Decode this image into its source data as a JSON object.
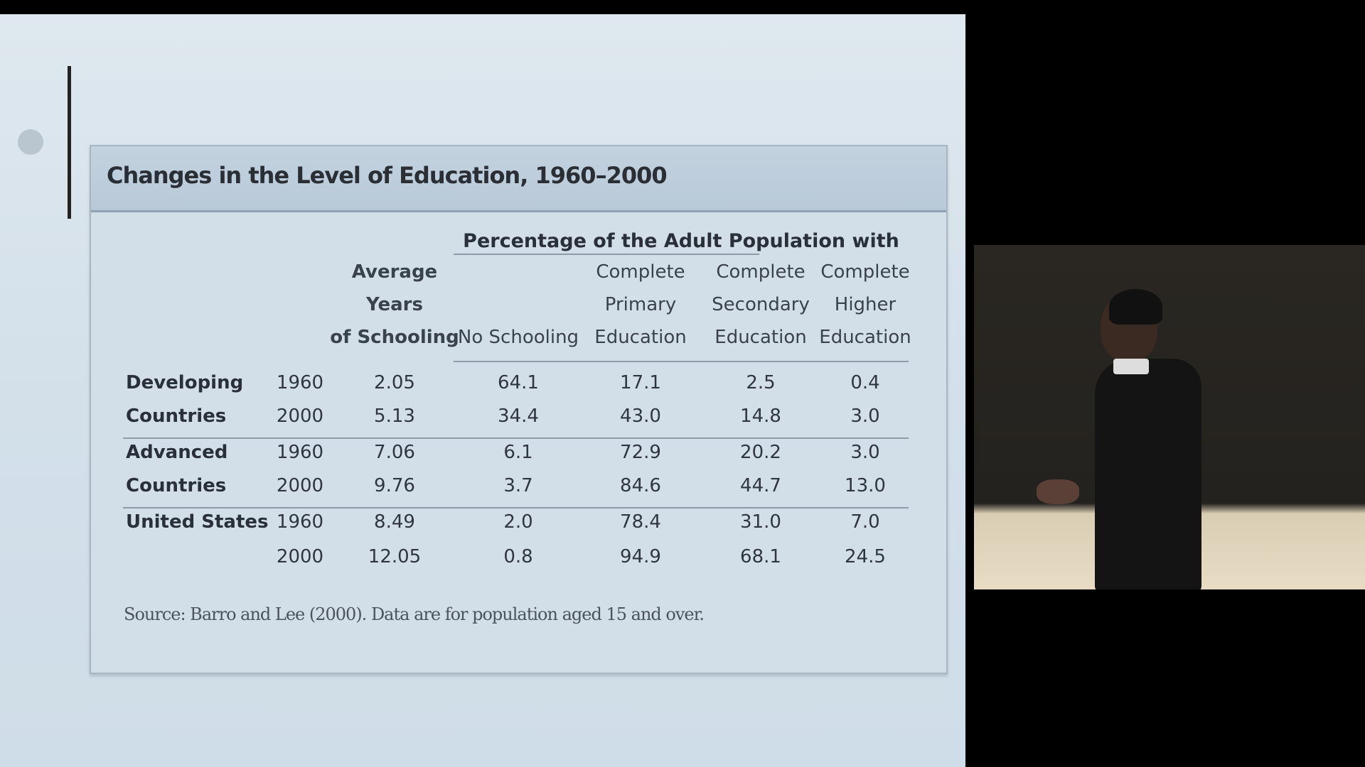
{
  "slide": {
    "table_title": "Changes in the Level of Education, 1960–2000",
    "group_header": "Percentage of the Adult Population with",
    "columns": [
      "Average Years of Schooling",
      "No Schooling",
      "Complete Primary Education",
      "Complete Secondary Education",
      "Complete Higher Education"
    ],
    "column_lines": [
      [
        "Average",
        "Years",
        "of Schooling"
      ],
      [
        "No Schooling"
      ],
      [
        "Complete",
        "Primary",
        "Education"
      ],
      [
        "Complete",
        "Secondary",
        "Education"
      ],
      [
        "Complete",
        "Higher",
        "Education"
      ]
    ],
    "rows": [
      {
        "region": "Developing",
        "year": "1960",
        "values": [
          "2.05",
          "64.1",
          "17.1",
          "2.5",
          "0.4"
        ]
      },
      {
        "region": "Countries",
        "year": "2000",
        "values": [
          "5.13",
          "34.4",
          "43.0",
          "14.8",
          "3.0"
        ]
      },
      {
        "region": "Advanced",
        "year": "1960",
        "values": [
          "7.06",
          "6.1",
          "72.9",
          "20.2",
          "3.0"
        ]
      },
      {
        "region": "Countries",
        "year": "2000",
        "values": [
          "9.76",
          "3.7",
          "84.6",
          "44.7",
          "13.0"
        ]
      },
      {
        "region": "United States",
        "year": "1960",
        "values": [
          "8.49",
          "2.0",
          "78.4",
          "31.0",
          "7.0"
        ]
      },
      {
        "region": "",
        "year": "2000",
        "values": [
          "12.05",
          "0.8",
          "94.9",
          "68.1",
          "24.5"
        ]
      }
    ],
    "source": "Source: Barro and Lee (2000). Data are for population aged 15 and over."
  },
  "video": {
    "content": "lecturer-camera-feed"
  }
}
